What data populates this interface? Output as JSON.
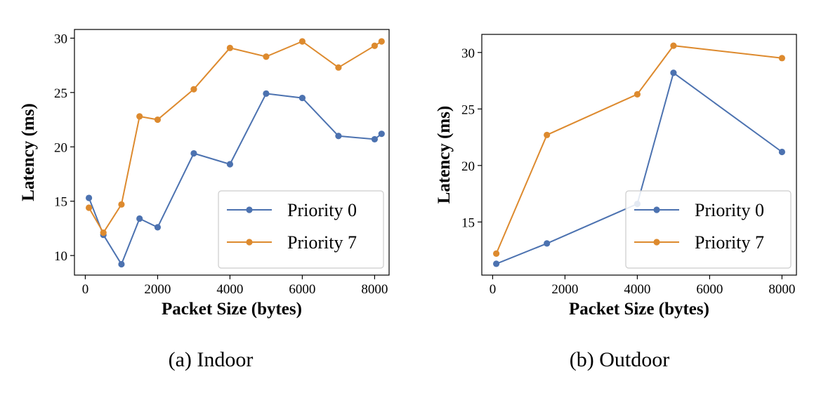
{
  "chart_data": [
    {
      "type": "line",
      "caption": "(a)  Indoor",
      "xlabel": "Packet Size (bytes)",
      "ylabel": "Latency (ms)",
      "xlim": [
        -300,
        8400
      ],
      "ylim": [
        8.2,
        30.8
      ],
      "xticks": [
        0,
        2000,
        4000,
        6000,
        8000
      ],
      "yticks": [
        10,
        15,
        20,
        25,
        30
      ],
      "legend": "lower-right",
      "grid": false,
      "series": [
        {
          "name": "Priority 0",
          "color": "#4c72b0",
          "x": [
            100,
            500,
            1000,
            1500,
            2000,
            3000,
            4000,
            5000,
            6000,
            7000,
            8000,
            8192
          ],
          "y": [
            15.3,
            11.9,
            9.2,
            13.4,
            12.6,
            19.4,
            18.4,
            24.9,
            24.5,
            21.0,
            20.7,
            21.2
          ]
        },
        {
          "name": "Priority 7",
          "color": "#dd8a2e",
          "x": [
            100,
            500,
            1000,
            1500,
            2000,
            3000,
            4000,
            5000,
            6000,
            7000,
            8000,
            8192
          ],
          "y": [
            14.4,
            12.1,
            14.7,
            22.8,
            22.5,
            25.3,
            29.1,
            28.3,
            29.7,
            27.3,
            29.3,
            29.7
          ]
        }
      ]
    },
    {
      "type": "line",
      "caption": "(b)  Outdoor",
      "xlabel": "Packet Size (bytes)",
      "ylabel": "Latency (ms)",
      "xlim": [
        -300,
        8400
      ],
      "ylim": [
        10.3,
        31.6
      ],
      "xticks": [
        0,
        2000,
        4000,
        6000,
        8000
      ],
      "yticks": [
        15,
        20,
        25,
        30
      ],
      "legend": "lower-right",
      "grid": false,
      "series": [
        {
          "name": "Priority 0",
          "color": "#4c72b0",
          "x": [
            100,
            1500,
            4000,
            5000,
            8000
          ],
          "y": [
            11.3,
            13.1,
            16.6,
            28.2,
            21.2
          ]
        },
        {
          "name": "Priority 7",
          "color": "#dd8a2e",
          "x": [
            100,
            1500,
            4000,
            5000,
            8000
          ],
          "y": [
            12.2,
            22.7,
            26.3,
            30.6,
            29.5
          ]
        }
      ]
    }
  ]
}
